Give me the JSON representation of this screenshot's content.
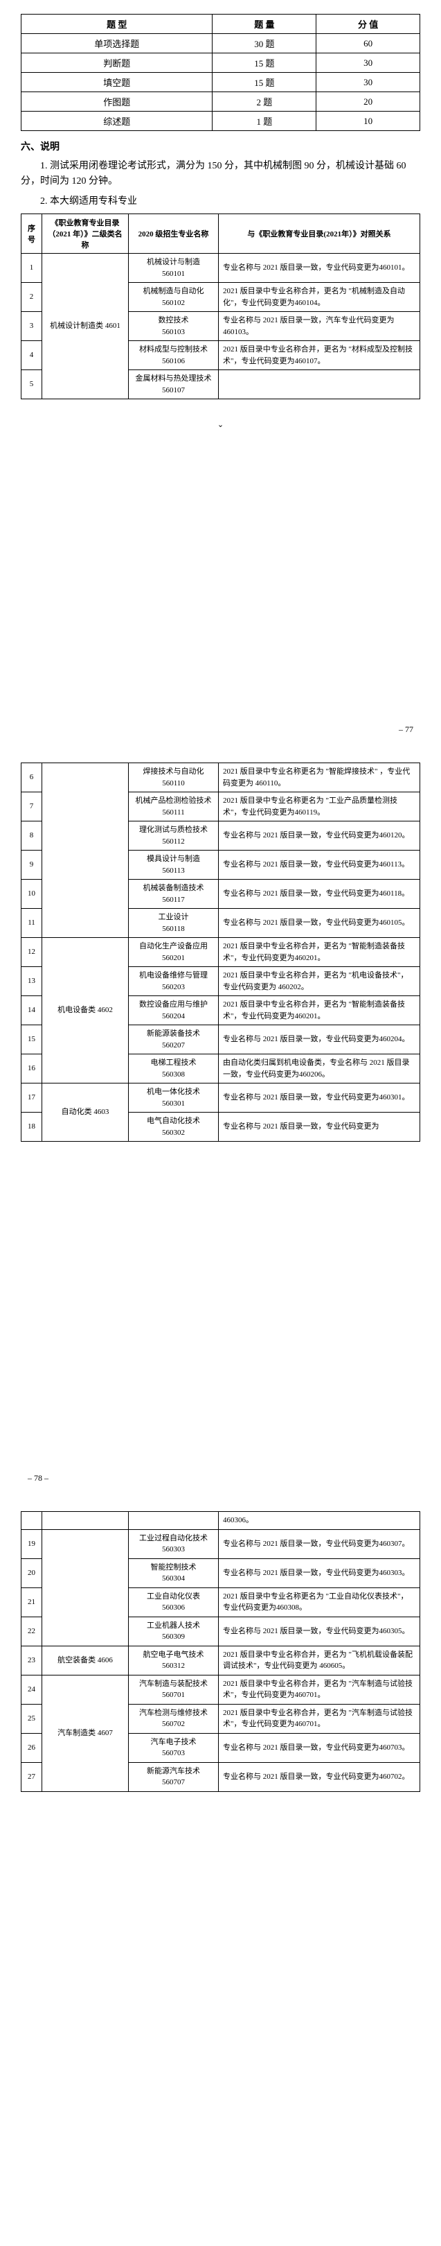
{
  "examTable": {
    "headers": [
      "题 型",
      "题 量",
      "分 值"
    ],
    "rows": [
      [
        "单项选择题",
        "30 题",
        "60"
      ],
      [
        "判断题",
        "15 题",
        "30"
      ],
      [
        "填空题",
        "15 题",
        "30"
      ],
      [
        "作图题",
        "2 题",
        "20"
      ],
      [
        "综述题",
        "1 题",
        "10"
      ]
    ]
  },
  "section6": {
    "title": "六、说明",
    "p1": "1. 测试采用闭卷理论考试形式，满分为 150 分，其中机械制图 90 分，机械设计基础 60 分，时间为 120 分钟。",
    "p2": "2. 本大纲适用专科专业"
  },
  "majorTable": {
    "headers": [
      "序号",
      "《职业教育专业目录（2021 年）》二级类名称",
      "2020 级招生专业名称",
      "与《职业教育专业目录(2021年）》对照关系"
    ],
    "page1Rows": [
      {
        "seq": "1",
        "cat": "机械设计制造类 4601",
        "catRowspan": 5,
        "m": "机械设计与制造\n560101",
        "r": "专业名称与 2021 版目录一致，专业代码变更为460101。"
      },
      {
        "seq": "2",
        "m": "机械制造与自动化\n560102",
        "r": "2021 版目录中专业名称合并，更名为 \"机械制造及自动化\"，专业代码变更为460104。"
      },
      {
        "seq": "3",
        "m": "数控技术\n560103",
        "r": "专业名称与 2021 版目录一致，汽车专业代码变更为460103。"
      },
      {
        "seq": "4",
        "m": "材料成型与控制技术\n560106",
        "r": "2021 版目录中专业名称合并，更名为 \"材料成型及控制技术\"，专业代码变更为460107。"
      },
      {
        "seq": "5",
        "m": "金属材料与热处理技术\n560107",
        "r": ""
      }
    ],
    "page2Rows": [
      {
        "seq": "6",
        "cat": "",
        "catRowspan": 6,
        "m": "焊接技术与自动化\n560110",
        "r": "2021 版目录中专业名称更名为 \"智能焊接技术\" ，专业代码变更为 460110。"
      },
      {
        "seq": "7",
        "m": "机械产品检测检验技术\n560111",
        "r": "2021 版目录中专业名称更名为 \"工业产品质量检测技术\"，专业代码变更为460119。"
      },
      {
        "seq": "8",
        "m": "理化测试与质检技术\n560112",
        "r": "专业名称与 2021 版目录一致，专业代码变更为460120。"
      },
      {
        "seq": "9",
        "m": "模具设计与制造\n560113",
        "r": "专业名称与 2021 版目录一致，专业代码变更为460113。"
      },
      {
        "seq": "10",
        "m": "机械装备制造技术\n560117",
        "r": "专业名称与 2021 版目录一致，专业代码变更为460118。"
      },
      {
        "seq": "11",
        "m": "工业设计\n560118",
        "r": "专业名称与 2021 版目录一致，专业代码变更为460105。"
      },
      {
        "seq": "12",
        "cat": "机电设备类 4602",
        "catRowspan": 5,
        "m": "自动化生产设备应用\n560201",
        "r": "2021 版目录中专业名称合并，更名为 \"智能制造装备技术\"，专业代码变更为460201。"
      },
      {
        "seq": "13",
        "m": "机电设备维修与管理\n560203",
        "r": "2021 版目录中专业名称合并，更名为 \"机电设备技术\"，专业代码变更为 460202。"
      },
      {
        "seq": "14",
        "m": "数控设备应用与维护\n560204",
        "r": "2021 版目录中专业名称合并，更名为 \"智能制造装备技术\"，专业代码变更为460201。"
      },
      {
        "seq": "15",
        "m": "新能源装备技术\n560207",
        "r": "专业名称与 2021 版目录一致，专业代码变更为460204。"
      },
      {
        "seq": "16",
        "m": "电梯工程技术\n560308",
        "r": "由自动化类归属到机电设备类，专业名称与 2021 版目录一致，专业代码变更为460206。"
      },
      {
        "seq": "17",
        "cat": "自动化类 4603",
        "catRowspan": 2,
        "m": "机电一体化技术\n560301",
        "r": "专业名称与 2021 版目录一致，专业代码变更为460301。"
      },
      {
        "seq": "18",
        "m": "电气自动化技术\n560302",
        "r": "专业名称与 2021 版目录一致，专业代码变更为"
      }
    ],
    "page3TopRow": {
      "r": "460306。"
    },
    "page3Rows": [
      {
        "seq": "19",
        "cat": "",
        "catRowspan": 4,
        "m": "工业过程自动化技术\n560303",
        "r": "专业名称与 2021 版目录一致，专业代码变更为460307。"
      },
      {
        "seq": "20",
        "m": "智能控制技术\n560304",
        "r": "专业名称与 2021 版目录一致，专业代码变更为460303。"
      },
      {
        "seq": "21",
        "m": "工业自动化仪表\n560306",
        "r": "2021 版目录中专业名称更名为 \"工业自动化仪表技术\"，专业代码变更为460308。"
      },
      {
        "seq": "22",
        "m": "工业机器人技术\n560309",
        "r": "专业名称与 2021 版目录一致，专业代码变更为460305。"
      },
      {
        "seq": "23",
        "cat": "航空装备类 4606",
        "catRowspan": 1,
        "m": "航空电子电气技术\n560312",
        "r": "2021 版目录中专业名称合并，更名为 \"飞机机载设备装配调试技术\"，专业代码变更为 460605。"
      },
      {
        "seq": "24",
        "cat": "汽车制造类 4607",
        "catRowspan": 4,
        "m": "汽车制造与装配技术\n560701",
        "r": "2021 版目录中专业名称合并，更名为 \"汽车制造与试验技术\"，专业代码变更为460701。"
      },
      {
        "seq": "25",
        "m": "汽车检测与维修技术\n560702",
        "r": "2021 版目录中专业名称合并，更名为 \"汽车制造与试验技术\"，专业代码变更为460701。"
      },
      {
        "seq": "26",
        "m": "汽车电子技术\n560703",
        "r": "专业名称与 2021 版目录一致，专业代码变更为460703。"
      },
      {
        "seq": "27",
        "m": "新能源汽车技术\n560707",
        "r": "专业名称与 2021 版目录一致，专业代码变更为460702。"
      }
    ]
  },
  "pageNumbers": {
    "p77": "– 77",
    "p78": "– 78 –"
  }
}
